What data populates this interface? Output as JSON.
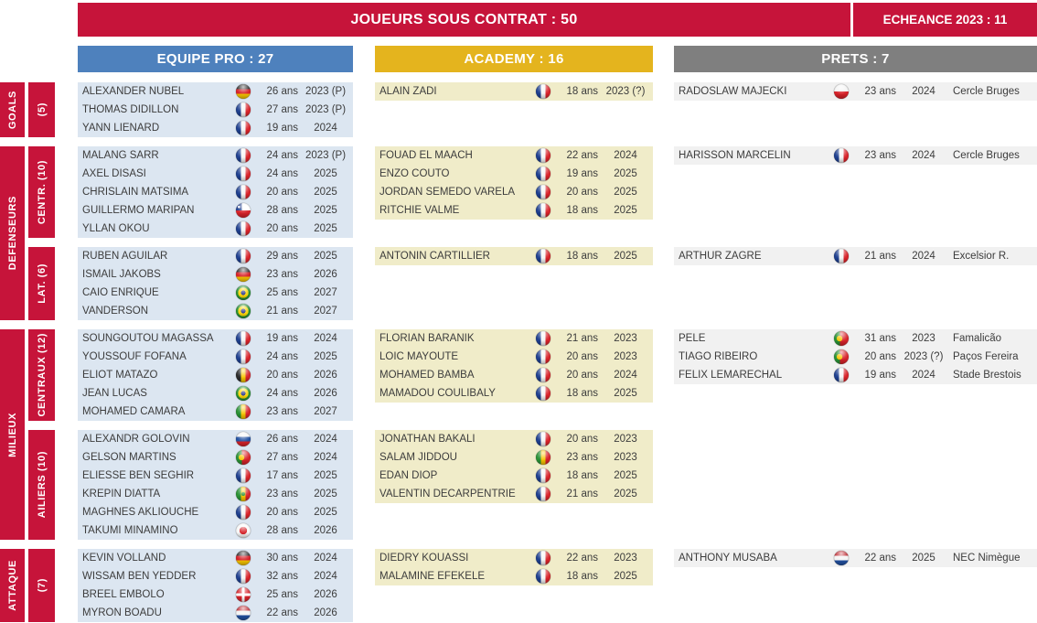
{
  "colors": {
    "red": "#c6143a",
    "pro_header": "#4e81bd",
    "pro_row": "#dce6f1",
    "academy_header": "#e4b41e",
    "academy_row": "#f0ecc9",
    "prets_header": "#7f7f7f",
    "prets_row": "#f1f1f1"
  },
  "banner": {
    "title": "JOUEURS SOUS CONTRAT : 50",
    "echeance": "ECHEANCE 2023 : 11"
  },
  "columns": {
    "pro": {
      "label": "EQUIPE PRO : 27"
    },
    "academy": {
      "label": "ACADEMY : 16"
    },
    "prets": {
      "label": "PRETS : 7"
    }
  },
  "side_groups": {
    "goals": {
      "label": "GOALS",
      "count": "(5)"
    },
    "defenseurs": {
      "label": "DEFENSEURS",
      "centr": "CENTR. (10)",
      "lat": "LAT. (6)"
    },
    "milieux": {
      "label": "MILIEUX",
      "centraux": "CENTRAUX (12)",
      "ailiers": "AILIERS (10)"
    },
    "attaque": {
      "label": "ATTAQUE",
      "count": "(7)"
    }
  },
  "sections": {
    "goals": {
      "pro": [
        {
          "name": "ALEXANDER NUBEL",
          "flag": "germany",
          "age": "26 ans",
          "year": "2023 (P)"
        },
        {
          "name": "THOMAS DIDILLON",
          "flag": "france",
          "age": "27 ans",
          "year": "2023 (P)"
        },
        {
          "name": "YANN LIENARD",
          "flag": "france",
          "age": "19 ans",
          "year": "2024"
        }
      ],
      "academy": [
        {
          "name": "ALAIN ZADI",
          "flag": "france",
          "age": "18 ans",
          "year": "2023 (?)"
        }
      ],
      "prets": [
        {
          "name": "RADOSLAW MAJECKI",
          "flag": "poland",
          "age": "23 ans",
          "year": "2024",
          "club": "Cercle Bruges"
        }
      ]
    },
    "centr": {
      "pro": [
        {
          "name": "MALANG SARR",
          "flag": "france",
          "age": "24 ans",
          "year": "2023 (P)"
        },
        {
          "name": "AXEL DISASI",
          "flag": "france",
          "age": "24 ans",
          "year": "2025"
        },
        {
          "name": "CHRISLAIN MATSIMA",
          "flag": "france",
          "age": "20 ans",
          "year": "2025"
        },
        {
          "name": "GUILLERMO MARIPAN",
          "flag": "chile",
          "age": "28 ans",
          "year": "2025"
        },
        {
          "name": "YLLAN OKOU",
          "flag": "france",
          "age": "20 ans",
          "year": "2025"
        }
      ],
      "academy": [
        {
          "name": "FOUAD EL MAACH",
          "flag": "france",
          "age": "22 ans",
          "year": "2024"
        },
        {
          "name": "ENZO COUTO",
          "flag": "france",
          "age": "19 ans",
          "year": "2025"
        },
        {
          "name": "JORDAN SEMEDO VARELA",
          "flag": "france",
          "age": "20 ans",
          "year": "2025"
        },
        {
          "name": "RITCHIE VALME",
          "flag": "france",
          "age": "18 ans",
          "year": "2025"
        }
      ],
      "prets": [
        {
          "name": "HARISSON MARCELIN",
          "flag": "france",
          "age": "23 ans",
          "year": "2024",
          "club": "Cercle Bruges"
        }
      ]
    },
    "lat": {
      "pro": [
        {
          "name": "RUBEN AGUILAR",
          "flag": "france",
          "age": "29 ans",
          "year": "2025"
        },
        {
          "name": "ISMAIL JAKOBS",
          "flag": "germany",
          "age": "23 ans",
          "year": "2026"
        },
        {
          "name": "CAIO ENRIQUE",
          "flag": "brazil",
          "age": "25 ans",
          "year": "2027"
        },
        {
          "name": "VANDERSON",
          "flag": "brazil",
          "age": "21 ans",
          "year": "2027"
        }
      ],
      "academy": [
        {
          "name": "ANTONIN CARTILLIER",
          "flag": "france",
          "age": "18 ans",
          "year": "2025"
        }
      ],
      "prets": [
        {
          "name": "ARTHUR ZAGRE",
          "flag": "france",
          "age": "21 ans",
          "year": "2024",
          "club": "Excelsior R."
        }
      ]
    },
    "centraux": {
      "pro": [
        {
          "name": "SOUNGOUTOU MAGASSA",
          "flag": "france",
          "age": "19 ans",
          "year": "2024"
        },
        {
          "name": "YOUSSOUF FOFANA",
          "flag": "france",
          "age": "24 ans",
          "year": "2025"
        },
        {
          "name": "ELIOT MATAZO",
          "flag": "belgium",
          "age": "20 ans",
          "year": "2026"
        },
        {
          "name": "JEAN LUCAS",
          "flag": "brazil",
          "age": "24 ans",
          "year": "2026"
        },
        {
          "name": "MOHAMED CAMARA",
          "flag": "mali",
          "age": "23 ans",
          "year": "2027"
        }
      ],
      "academy": [
        {
          "name": "FLORIAN BARANIK",
          "flag": "france",
          "age": "21 ans",
          "year": "2023"
        },
        {
          "name": "LOIC MAYOUTE",
          "flag": "france",
          "age": "20 ans",
          "year": "2023"
        },
        {
          "name": "MOHAMED BAMBA",
          "flag": "france",
          "age": "20 ans",
          "year": "2024"
        },
        {
          "name": "MAMADOU COULIBALY",
          "flag": "france",
          "age": "18 ans",
          "year": "2025"
        }
      ],
      "prets": [
        {
          "name": "PELE",
          "flag": "portugal",
          "age": "31 ans",
          "year": "2023",
          "club": "Famalicão"
        },
        {
          "name": "TIAGO RIBEIRO",
          "flag": "portugal",
          "age": "20 ans",
          "year": "2023 (?)",
          "club": "Paços Fereira"
        },
        {
          "name": "FELIX LEMARECHAL",
          "flag": "france",
          "age": "19 ans",
          "year": "2024",
          "club": "Stade Brestois"
        }
      ]
    },
    "ailiers": {
      "pro": [
        {
          "name": "ALEXANDR GOLOVIN",
          "flag": "russia",
          "age": "26 ans",
          "year": "2024"
        },
        {
          "name": "GELSON MARTINS",
          "flag": "portugal",
          "age": "27 ans",
          "year": "2024"
        },
        {
          "name": "ELIESSE BEN SEGHIR",
          "flag": "france",
          "age": "17 ans",
          "year": "2025"
        },
        {
          "name": "KREPIN DIATTA",
          "flag": "senegal",
          "age": "23 ans",
          "year": "2025"
        },
        {
          "name": "MAGHNES AKLIOUCHE",
          "flag": "france",
          "age": "20 ans",
          "year": "2025"
        },
        {
          "name": "TAKUMI MINAMINO",
          "flag": "japan",
          "age": "28 ans",
          "year": "2026"
        }
      ],
      "academy": [
        {
          "name": "JONATHAN BAKALI",
          "flag": "france",
          "age": "20 ans",
          "year": "2023"
        },
        {
          "name": "SALAM JIDDOU",
          "flag": "mali",
          "age": "23 ans",
          "year": "2023"
        },
        {
          "name": "EDAN DIOP",
          "flag": "france",
          "age": "18 ans",
          "year": "2025"
        },
        {
          "name": "VALENTIN DECARPENTRIE",
          "flag": "france",
          "age": "21 ans",
          "year": "2025"
        }
      ],
      "prets": []
    },
    "attaque": {
      "pro": [
        {
          "name": "KEVIN VOLLAND",
          "flag": "germany",
          "age": "30 ans",
          "year": "2024"
        },
        {
          "name": "WISSAM BEN YEDDER",
          "flag": "france",
          "age": "32 ans",
          "year": "2024"
        },
        {
          "name": "BREEL EMBOLO",
          "flag": "switzerland",
          "age": "25 ans",
          "year": "2026"
        },
        {
          "name": "MYRON BOADU",
          "flag": "netherlands",
          "age": "22 ans",
          "year": "2026"
        }
      ],
      "academy": [
        {
          "name": "DIEDRY KOUASSI",
          "flag": "france",
          "age": "22 ans",
          "year": "2023"
        },
        {
          "name": "MALAMINE EFEKELE",
          "flag": "france",
          "age": "18 ans",
          "year": "2025"
        }
      ],
      "prets": [
        {
          "name": "ANTHONY MUSABA",
          "flag": "netherlands",
          "age": "22 ans",
          "year": "2025",
          "club": "NEC Nimègue"
        }
      ]
    }
  }
}
